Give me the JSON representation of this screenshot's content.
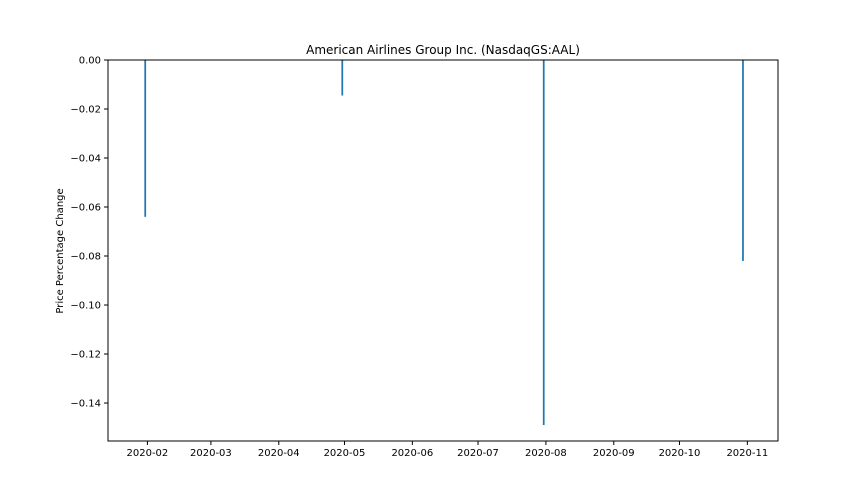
{
  "chart_data": {
    "type": "bar",
    "title": "American Airlines Group Inc. (NasdaqGS:AAL)",
    "xlabel": "",
    "ylabel": "Price Percentage Change",
    "x_ticks": [
      "2020-02",
      "2020-03",
      "2020-04",
      "2020-05",
      "2020-06",
      "2020-07",
      "2020-08",
      "2020-09",
      "2020-10",
      "2020-11"
    ],
    "y_ticks": [
      "0.00",
      "−0.02",
      "−0.04",
      "−0.06",
      "−0.08",
      "−0.10",
      "−0.12",
      "−0.14"
    ],
    "xlim": [
      "2020-01-14",
      "2020-11-15"
    ],
    "ylim": [
      -0.1555,
      0
    ],
    "grid": false,
    "color": "#1f77b4",
    "series": [
      {
        "x": [
          "2020-01-31",
          "2020-04-30",
          "2020-07-31",
          "2020-10-30"
        ],
        "values": [
          -0.064,
          -0.0145,
          -0.149,
          -0.082
        ]
      }
    ]
  }
}
